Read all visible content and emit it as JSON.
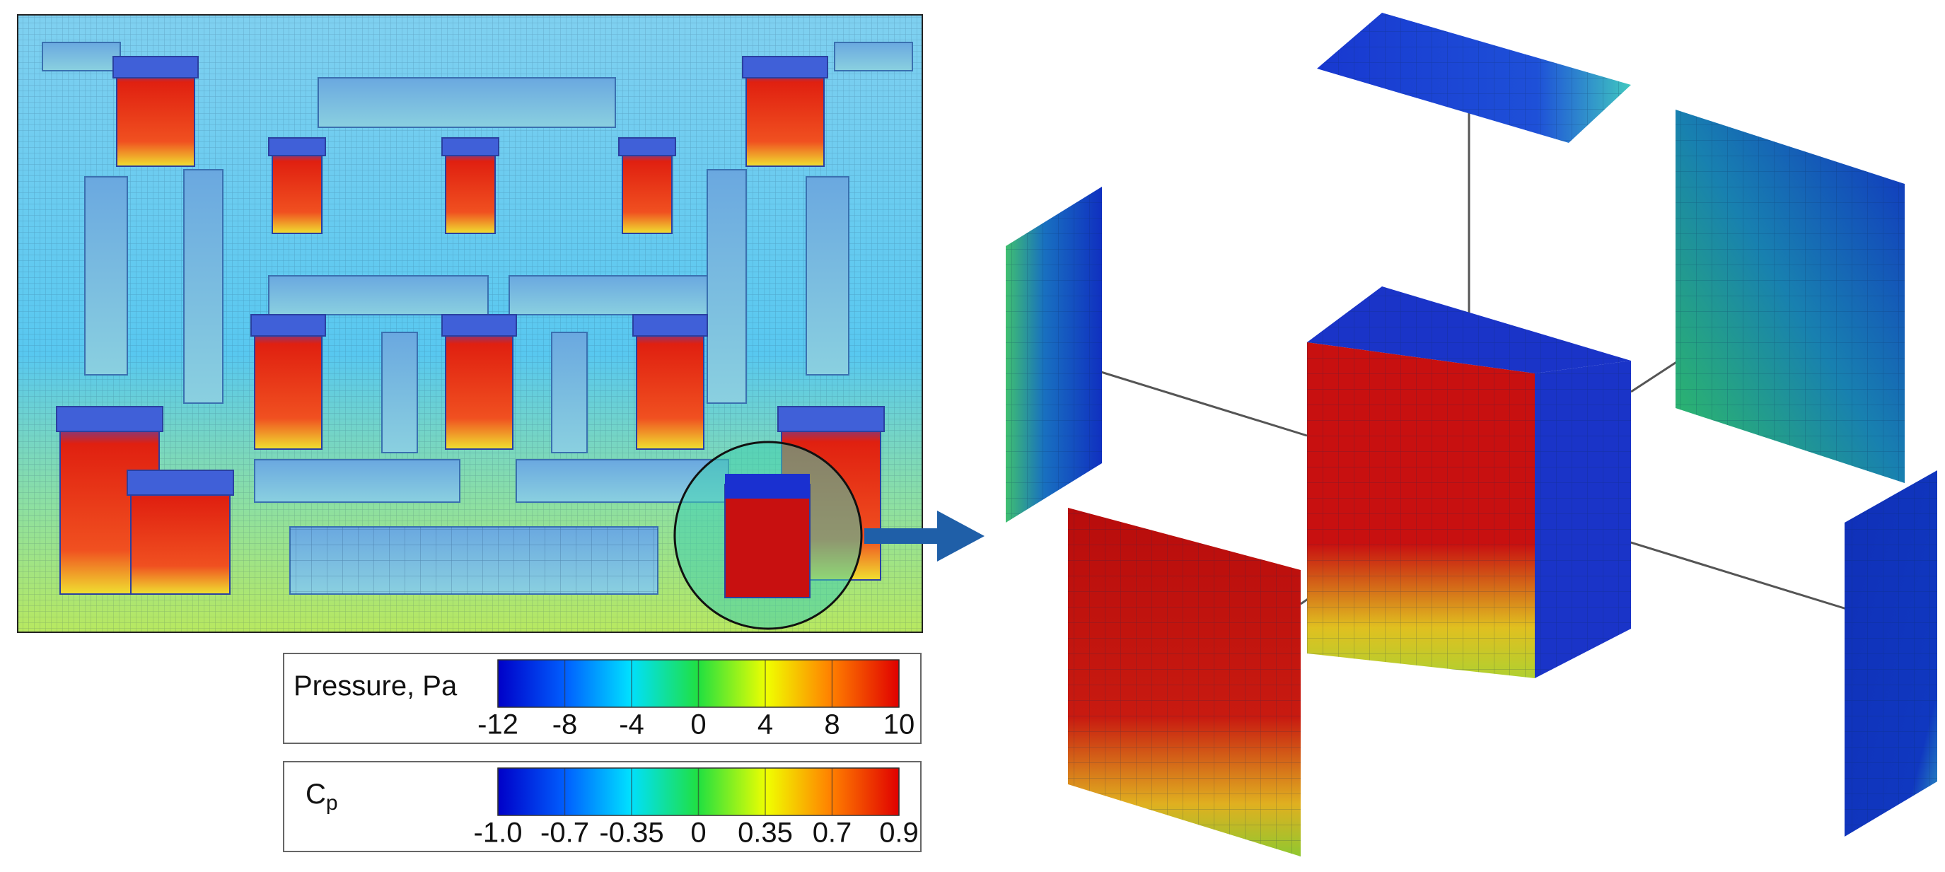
{
  "legends": [
    {
      "title": "Pressure, Pa",
      "ticks": [
        -12,
        -8,
        -4,
        0,
        4,
        8,
        10
      ]
    },
    {
      "title": "C",
      "title_subscript": "p",
      "ticks": [
        {
          "value": -1,
          "label": "-1.0"
        },
        -0.7,
        -0.35,
        0,
        0.35,
        0.7,
        0.9
      ]
    }
  ]
}
